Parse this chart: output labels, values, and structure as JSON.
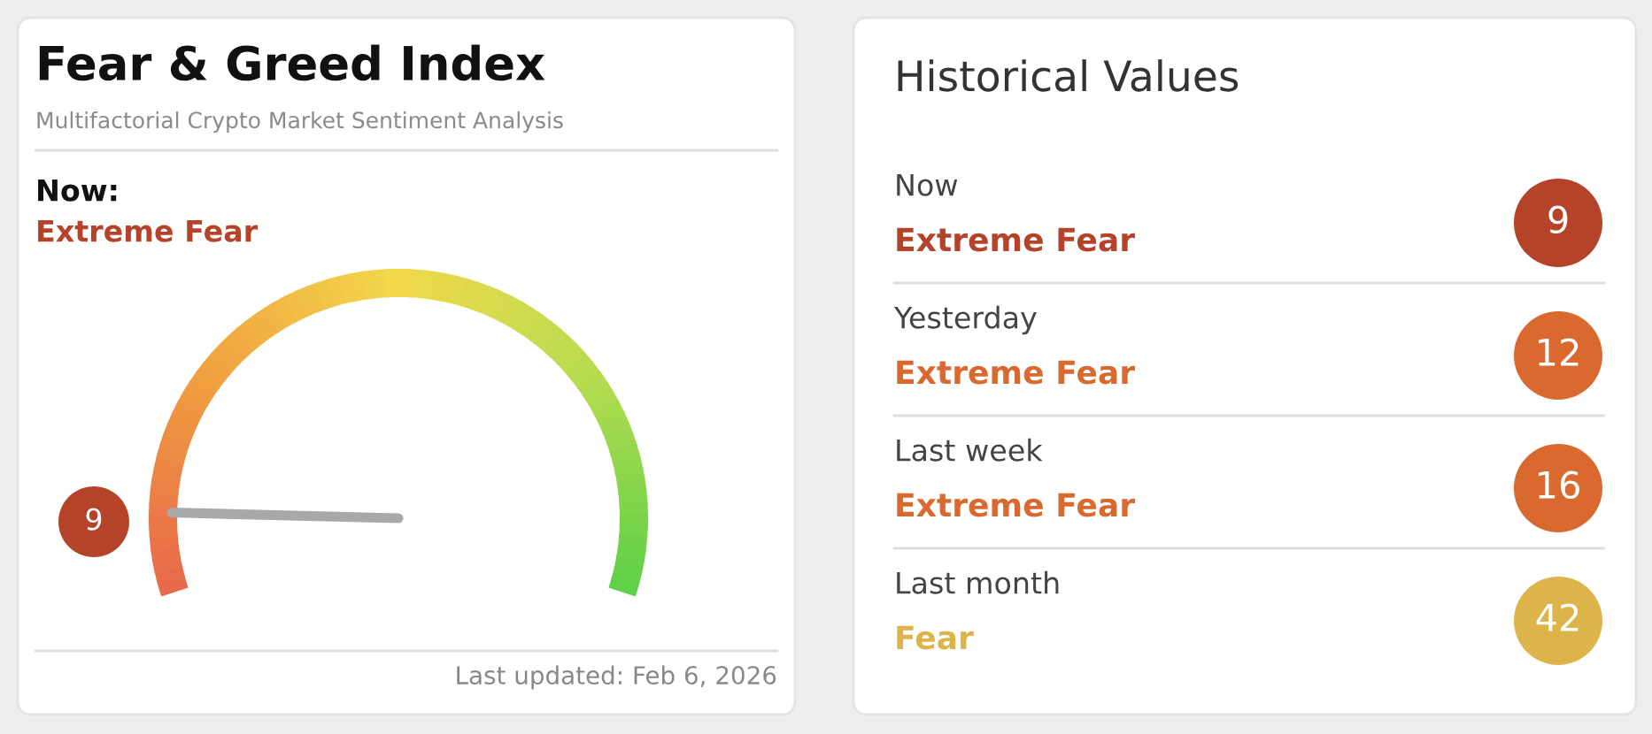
{
  "chart_data": [
    {
      "type": "other",
      "title": "Fear & Greed Index",
      "subtitle": "Multifactorial Crypto Market Sentiment Analysis",
      "values": [
        9
      ],
      "colors": [
        "#b5432a"
      ],
      "data_labels": true,
      "annotations": [
        "Now:",
        "Extreme Fear",
        "Last updated: Feb 6, 2026"
      ]
    },
    {
      "type": "other",
      "title": "Historical Values",
      "colors": [
        "#b5432a",
        "#d9692f",
        "#d9692f",
        "#dcb44a"
      ],
      "annotations": [
        "Now",
        "Extreme Fear",
        "9",
        "Yesterday",
        "Extreme Fear",
        "12",
        "Last week",
        "Extreme Fear",
        "16",
        "Last month",
        "Fear",
        "42"
      ]
    }
  ]
}
